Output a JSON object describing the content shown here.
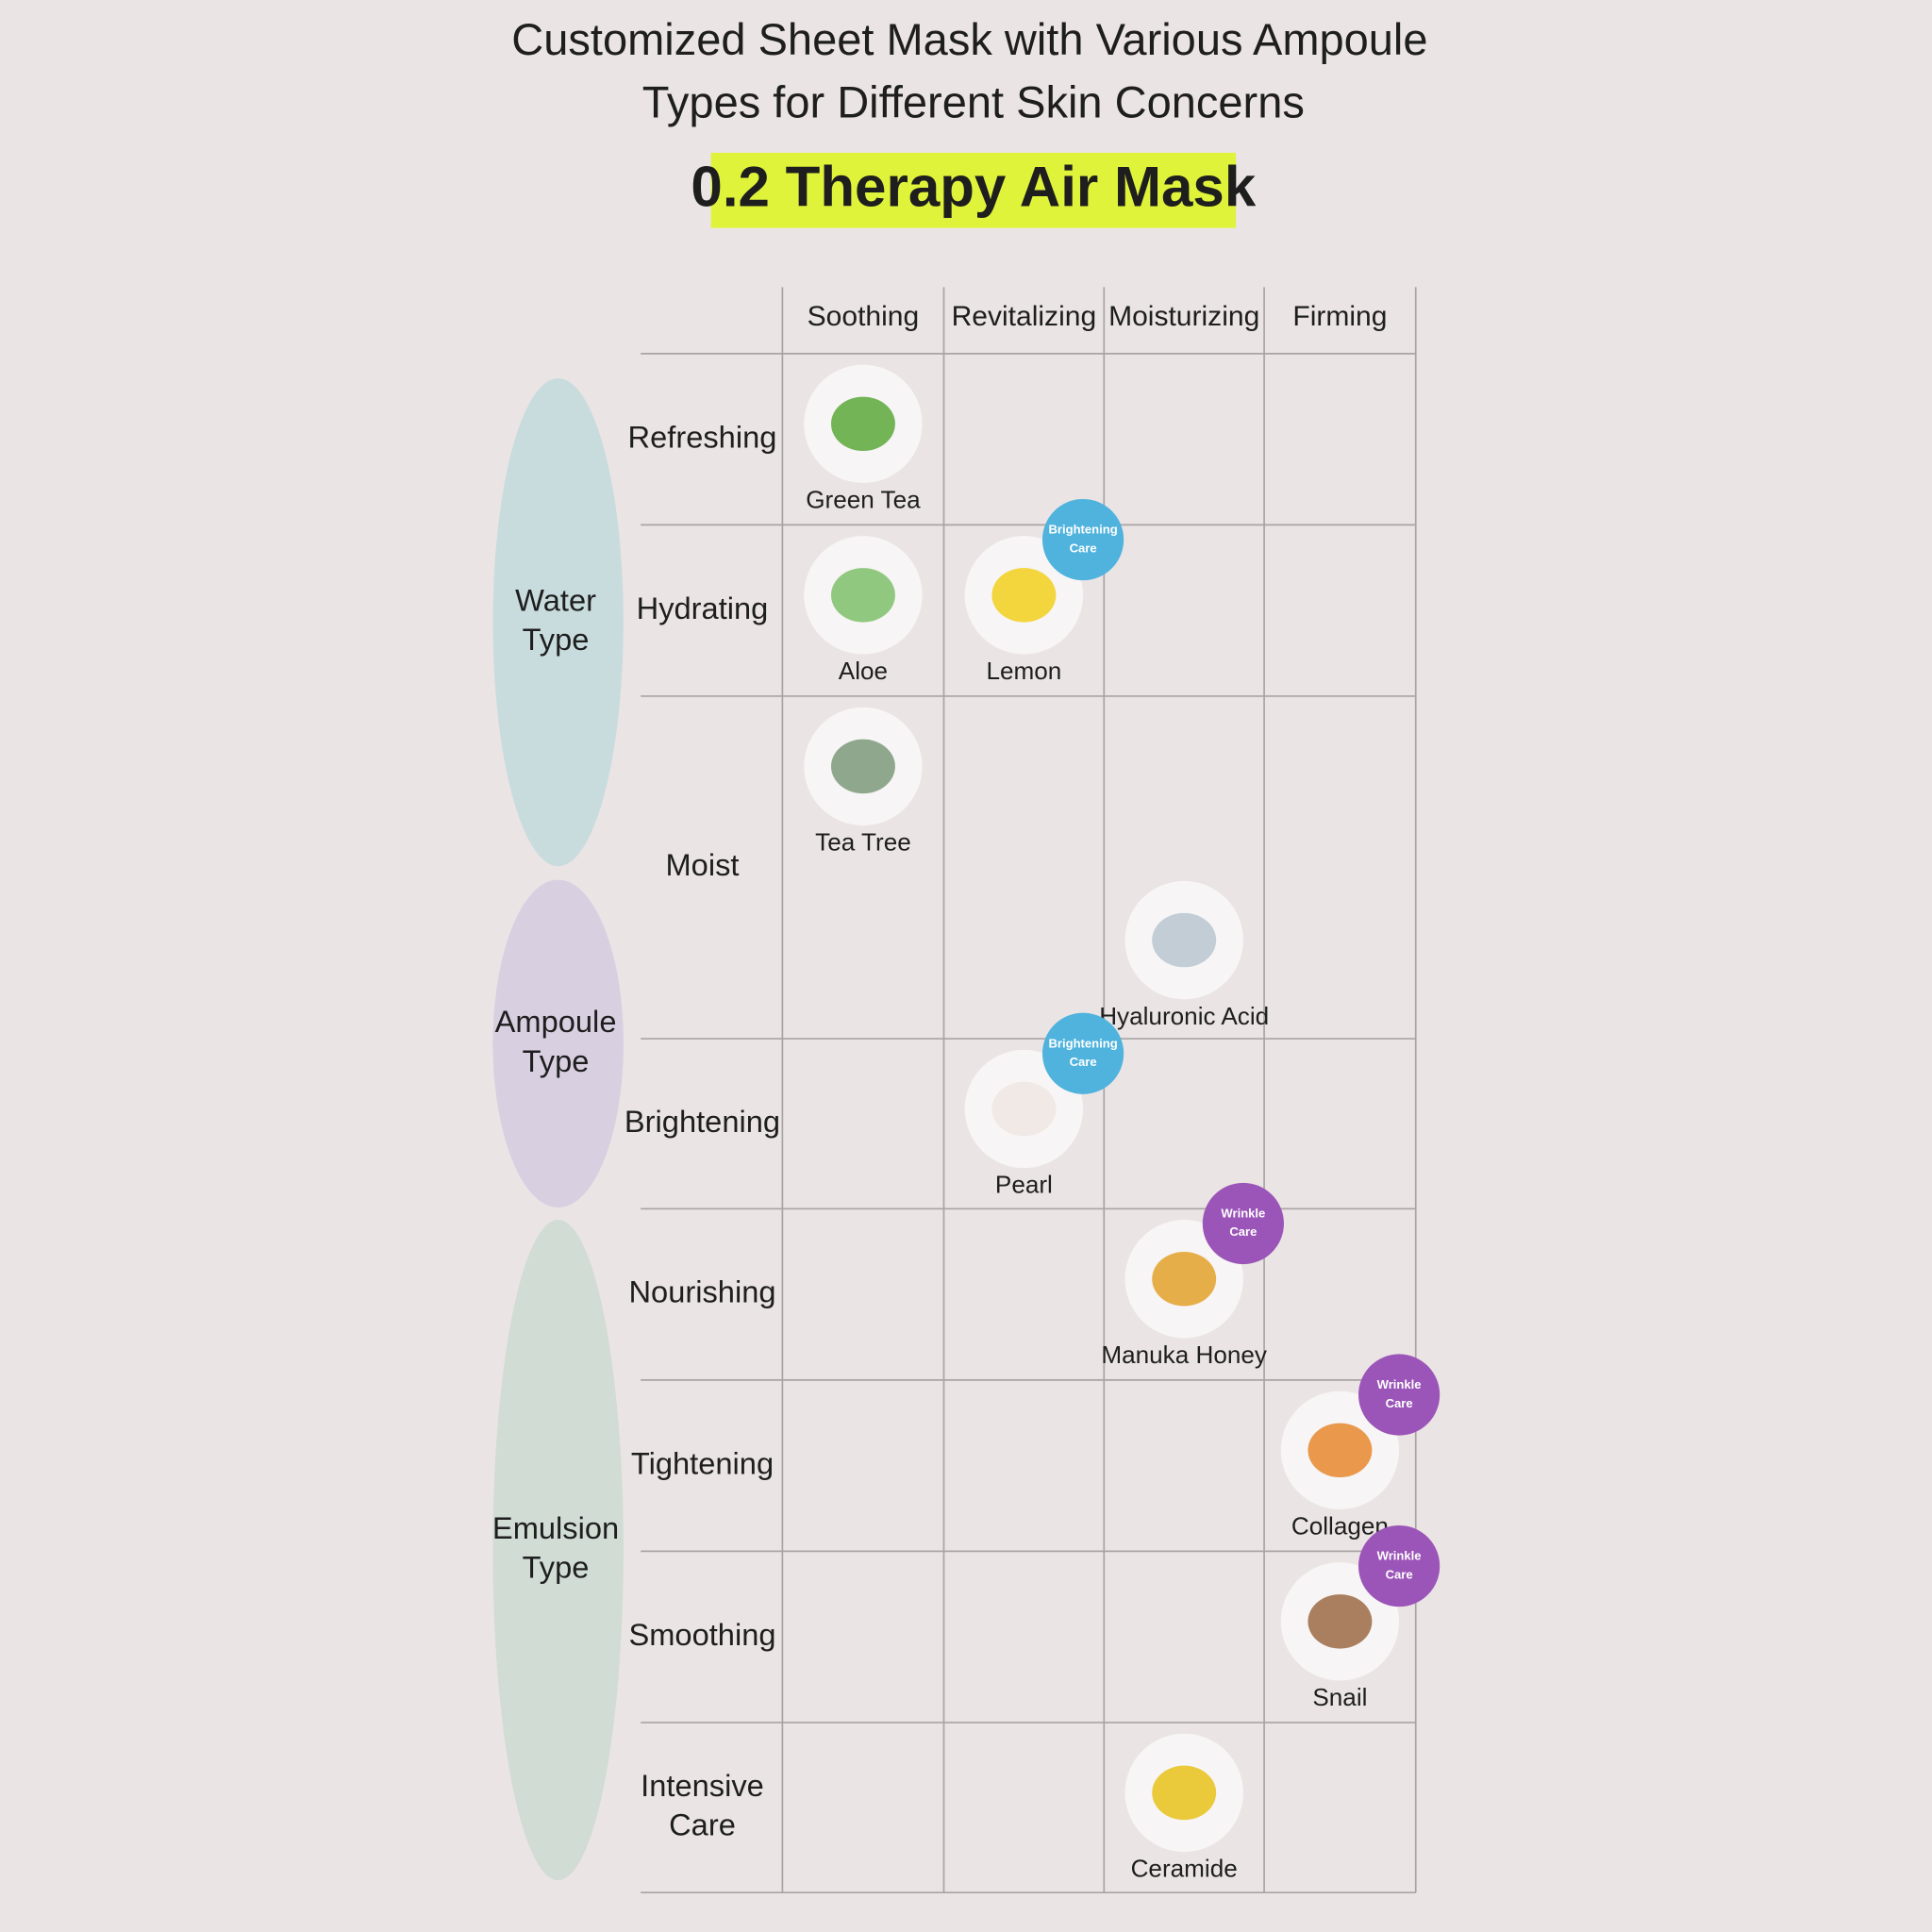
{
  "header": {
    "title_lines": [
      "Customized Sheet Mask with Various Ampoule",
      "Types for Different Skin Concerns"
    ],
    "product": "0.2 Therapy Air Mask"
  },
  "table": {
    "columns": [
      "Soothing",
      "Revitalizing",
      "Moisturizing",
      "Firming"
    ],
    "groups": [
      {
        "lines": [
          "Water",
          "Type"
        ],
        "color": "#c9dcdd"
      },
      {
        "lines": [
          "Ampoule",
          "Type"
        ],
        "color": "#d8cfe1"
      },
      {
        "lines": [
          "Emulsion",
          "Type"
        ],
        "color": "#d0dcd4"
      }
    ],
    "rows": [
      {
        "lines": [
          "Refreshing"
        ],
        "cells": [
          {
            "name": "Green Tea",
            "icon_color": "#5aa83a"
          },
          null,
          null,
          null
        ]
      },
      {
        "lines": [
          "Hydrating"
        ],
        "cells": [
          {
            "name": "Aloe",
            "icon_color": "#7fbf6a"
          },
          {
            "name": "Lemon",
            "icon_color": "#f2cf1c",
            "badge": [
              "Brightening",
              "Care"
            ],
            "badge_color": "#4fb3dd"
          },
          null,
          null
        ]
      },
      {
        "lines": [
          "Moist"
        ],
        "cells": [
          {
            "name": "Tea Tree",
            "icon_color": "#7d9a7a"
          },
          null,
          {
            "name": "Hyaluronic Acid",
            "icon_color": "#b8c6cf"
          },
          null
        ]
      },
      {
        "lines": [
          "Brightening"
        ],
        "cells": [
          null,
          {
            "name": "Pearl",
            "icon_color": "#efe6e2",
            "badge": [
              "Brightening",
              "Care"
            ],
            "badge_color": "#4fb3dd"
          },
          null,
          null
        ]
      },
      {
        "lines": [
          "Nourishing"
        ],
        "cells": [
          null,
          null,
          {
            "name": "Manuka Honey",
            "icon_color": "#e3a12a",
            "badge": [
              "Wrinkle",
              "Care"
            ],
            "badge_color": "#9b55b8"
          },
          null
        ]
      },
      {
        "lines": [
          "Tightening"
        ],
        "cells": [
          null,
          null,
          null,
          {
            "name": "Collagen",
            "icon_color": "#e6872e",
            "badge": [
              "Wrinkle",
              "Care"
            ],
            "badge_color": "#9b55b8"
          }
        ]
      },
      {
        "lines": [
          "Smoothing"
        ],
        "cells": [
          null,
          null,
          null,
          {
            "name": "Snail",
            "icon_color": "#9c6a45",
            "badge": [
              "Wrinkle",
              "Care"
            ],
            "badge_color": "#9b55b8"
          }
        ]
      },
      {
        "lines": [
          "Intensive",
          "Care"
        ],
        "cells": [
          null,
          null,
          {
            "name": "Ceramide",
            "icon_color": "#e8c21a"
          },
          null
        ]
      }
    ]
  }
}
